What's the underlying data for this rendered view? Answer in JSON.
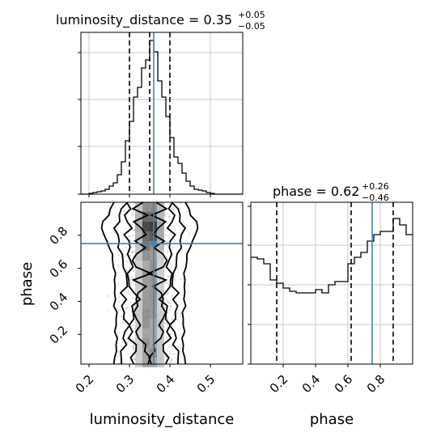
{
  "chart_data": [
    {
      "type": "histogram",
      "panel": "luminosity_distance marginal",
      "title": {
        "main": "luminosity_distance = 0.35",
        "plus": "+0.05",
        "minus": "−0.05"
      },
      "xlim": [
        0.18,
        0.58
      ],
      "ylim": [
        0,
        1.0
      ],
      "grid": true,
      "quantiles": [
        0.3,
        0.35,
        0.4
      ],
      "truth": 0.36,
      "bin_edges": [
        0.18,
        0.19,
        0.2,
        0.21,
        0.22,
        0.23,
        0.24,
        0.25,
        0.26,
        0.27,
        0.28,
        0.29,
        0.3,
        0.31,
        0.32,
        0.33,
        0.34,
        0.35,
        0.36,
        0.37,
        0.38,
        0.39,
        0.4,
        0.41,
        0.42,
        0.43,
        0.44,
        0.45,
        0.46,
        0.47,
        0.48,
        0.49,
        0.5,
        0.51,
        0.52,
        0.53,
        0.54,
        0.55,
        0.56,
        0.57,
        0.58
      ],
      "values": [
        0,
        0,
        0.005,
        0.01,
        0.015,
        0.02,
        0.03,
        0.05,
        0.07,
        0.12,
        0.2,
        0.33,
        0.45,
        0.6,
        0.66,
        0.78,
        0.83,
        0.95,
        0.88,
        0.7,
        0.6,
        0.48,
        0.35,
        0.23,
        0.19,
        0.13,
        0.08,
        0.05,
        0.03,
        0.025,
        0.02,
        0.01,
        0.005,
        0,
        0,
        0,
        0,
        0,
        0,
        0
      ]
    },
    {
      "type": "histogram",
      "panel": "phase marginal",
      "title": {
        "main": "phase = 0.62",
        "plus": "+0.26",
        "minus": "−0.46"
      },
      "xlim": [
        0,
        1.0
      ],
      "ylim": [
        0,
        1.0
      ],
      "grid": true,
      "quantiles": [
        0.16,
        0.62,
        0.88
      ],
      "truth": 0.75,
      "bin_edges": [
        0,
        0.04,
        0.08,
        0.12,
        0.16,
        0.2,
        0.24,
        0.28,
        0.32,
        0.36,
        0.4,
        0.44,
        0.48,
        0.52,
        0.56,
        0.6,
        0.64,
        0.68,
        0.72,
        0.76,
        0.8,
        0.84,
        0.88,
        0.92,
        0.96,
        1.0
      ],
      "values": [
        0.66,
        0.65,
        0.62,
        0.52,
        0.5,
        0.47,
        0.45,
        0.44,
        0.44,
        0.44,
        0.46,
        0.44,
        0.49,
        0.51,
        0.51,
        0.62,
        0.66,
        0.69,
        0.76,
        0.8,
        0.82,
        0.82,
        0.9,
        0.86,
        0.8
      ]
    },
    {
      "type": "heatmap",
      "panel": "2D posterior",
      "xlim": [
        0.18,
        0.58
      ],
      "ylim": [
        0.02,
        1.0
      ],
      "truth": {
        "x": 0.36,
        "y": 0.75
      },
      "density_center_x": 0.35,
      "density_peak_y": 0.85,
      "contour_levels": 4
    }
  ],
  "axes": {
    "x_label_1": "luminosity_distance",
    "y_label_1": "phase",
    "x_label_2": "phase",
    "x_ticks_1": [
      "0.2",
      "0.3",
      "0.4",
      "0.5"
    ],
    "y_ticks_1": [
      "0.2",
      "0.4",
      "0.6",
      "0.8"
    ],
    "x_ticks_2": [
      "0.2",
      "0.4",
      "0.6",
      "0.8"
    ]
  },
  "colors": {
    "truth": "#4682b4",
    "histogram": "#000000",
    "grid": "#c8c8c8"
  }
}
